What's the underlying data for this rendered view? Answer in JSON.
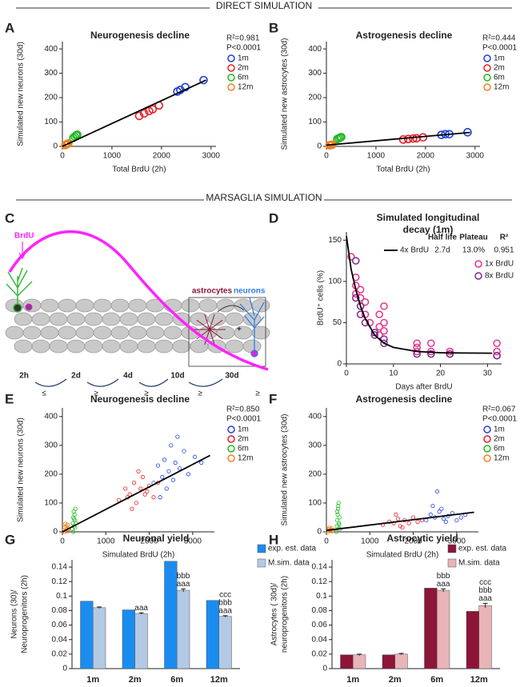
{
  "sections": [
    "DIRECT SIMULATION",
    "MARSAGLIA SIMULATION"
  ],
  "diagram": {
    "panel": "C",
    "brdu": "BrdU",
    "cell_labels": [
      "astrocytes",
      "neurons"
    ],
    "timepoints": [
      "2h",
      "2d",
      "4d",
      "10d",
      "30d"
    ],
    "comparisons": [
      "≤",
      "≥",
      "≥",
      "≥",
      "≥"
    ],
    "plus": "+"
  },
  "chart_data": [
    {
      "panel": "A",
      "type": "scatter",
      "title": "Neurogenesis decline",
      "xlabel": "Total BrdU (2h)",
      "ylabel": "Simulated new neurons (30d)",
      "annotations": [
        "R²=0.981",
        "P<0.0001"
      ],
      "xlim": [
        0,
        3100
      ],
      "xticks": [
        0,
        1000,
        2000,
        3000
      ],
      "ylim": [
        0,
        430
      ],
      "yticks": [
        0,
        100,
        200,
        300,
        400
      ],
      "series": [
        {
          "name": "1m",
          "color": "#1f3fd8",
          "x": [
            2320,
            2380,
            2480,
            2850
          ],
          "y": [
            225,
            232,
            243,
            272
          ]
        },
        {
          "name": "2m",
          "color": "#e8202a",
          "x": [
            1550,
            1650,
            1750,
            1820,
            1950
          ],
          "y": [
            125,
            135,
            145,
            152,
            168
          ]
        },
        {
          "name": "6m",
          "color": "#22b822",
          "x": [
            220,
            250,
            280,
            300
          ],
          "y": [
            35,
            40,
            45,
            48
          ]
        },
        {
          "name": "12m",
          "color": "#f08020",
          "x": [
            60,
            80,
            100,
            120
          ],
          "y": [
            5,
            8,
            10,
            12
          ]
        }
      ],
      "fit": {
        "color": "#000000",
        "x": [
          0,
          2900
        ],
        "y": [
          0,
          272
        ]
      }
    },
    {
      "panel": "B",
      "type": "scatter",
      "title": "Astrogenesis decline",
      "xlabel": "Total BrdU (2h)",
      "ylabel": "Simulated new astrocytes (30d)",
      "annotations": [
        "R²=0.444",
        "P<0.0001"
      ],
      "xlim": [
        0,
        3100
      ],
      "xticks": [
        0,
        1000,
        2000,
        3000
      ],
      "ylim": [
        0,
        430
      ],
      "yticks": [
        0,
        100,
        200,
        300,
        400
      ],
      "series": [
        {
          "name": "1m",
          "color": "#1f3fd8",
          "x": [
            2320,
            2400,
            2480,
            2850
          ],
          "y": [
            47,
            50,
            50,
            58
          ]
        },
        {
          "name": "2m",
          "color": "#e8202a",
          "x": [
            1550,
            1650,
            1750,
            1820,
            1950
          ],
          "y": [
            28,
            30,
            32,
            33,
            37
          ]
        },
        {
          "name": "6m",
          "color": "#22b822",
          "x": [
            220,
            250,
            280,
            300
          ],
          "y": [
            30,
            33,
            36,
            38
          ]
        },
        {
          "name": "12m",
          "color": "#f08020",
          "x": [
            60,
            80,
            100,
            120
          ],
          "y": [
            4,
            5,
            6,
            7
          ]
        }
      ],
      "fit": {
        "color": "#000000",
        "x": [
          0,
          2900
        ],
        "y": [
          5,
          57
        ]
      }
    },
    {
      "panel": "D",
      "type": "scatter",
      "title": [
        "Simulated longitudinal",
        "decay (1m)"
      ],
      "xlabel": "Days after BrdU",
      "ylabel": "BrdU⁺ cells (%)",
      "xlim": [
        0,
        33
      ],
      "xticks": [
        0,
        10,
        20,
        30
      ],
      "ylim": [
        0,
        160
      ],
      "yticks": [
        0,
        50,
        100,
        150
      ],
      "fit_headers": [
        "Half life",
        "Plateau",
        "R²"
      ],
      "fit": {
        "name": "4x BrdU",
        "half_life": "2.7d",
        "plateau": "13.0%",
        "r2": "0.951",
        "color": "#000000",
        "x": [
          0,
          1,
          2,
          3,
          4,
          6,
          8,
          10,
          15,
          20,
          25,
          31
        ],
        "y": [
          155,
          115,
          90,
          70,
          55,
          35,
          25,
          20,
          15,
          13.5,
          13.2,
          13
        ]
      },
      "series": [
        {
          "name": "1x BrdU",
          "color": "#e8328a",
          "x": [
            1,
            2,
            2,
            2,
            3,
            3,
            3,
            4,
            4,
            5,
            7,
            7,
            7,
            8,
            8,
            8,
            15,
            15,
            15,
            18,
            18,
            22,
            22,
            32,
            32,
            32
          ],
          "y": [
            130,
            105,
            95,
            85,
            90,
            80,
            70,
            75,
            60,
            50,
            60,
            45,
            35,
            70,
            50,
            40,
            25,
            20,
            15,
            25,
            15,
            15,
            12,
            25,
            15,
            10
          ]
        },
        {
          "name": "8x BrdU",
          "color": "#7b2a8c",
          "x": [
            2,
            2,
            3,
            3,
            4,
            6,
            6,
            8,
            8,
            15,
            18,
            22,
            32
          ],
          "y": [
            125,
            80,
            70,
            60,
            50,
            35,
            38,
            25,
            30,
            12,
            12,
            12,
            10
          ]
        }
      ]
    },
    {
      "panel": "E",
      "type": "scatter",
      "title": "Neurogenesis decline",
      "xlabel": "Simulated BrdU (2h)",
      "ylabel": "Simulated new neurons (30d)",
      "annotations": [
        "R²=0.850",
        "P<0.0001"
      ],
      "xlim": [
        0,
        3500
      ],
      "xticks": [
        0,
        1000,
        2000,
        3000
      ],
      "ylim": [
        0,
        430
      ],
      "yticks": [
        0,
        100,
        200,
        300,
        400
      ],
      "series": [
        {
          "name": "1m",
          "color": "#2040e0",
          "x": [
            2100,
            2200,
            2300,
            2350,
            2450,
            2500,
            2550,
            2600,
            2700,
            2800,
            2900,
            3050,
            2400,
            2650,
            2250,
            3200
          ],
          "y": [
            170,
            230,
            190,
            250,
            210,
            300,
            180,
            240,
            220,
            280,
            200,
            260,
            150,
            330,
            120,
            240
          ]
        },
        {
          "name": "2m",
          "color": "#ee1c25",
          "x": [
            1300,
            1450,
            1550,
            1650,
            1700,
            1800,
            1850,
            1900,
            2000,
            2100,
            2200,
            1600,
            1750,
            1950,
            1500
          ],
          "y": [
            110,
            150,
            130,
            170,
            100,
            150,
            190,
            130,
            160,
            120,
            170,
            80,
            210,
            140,
            120
          ]
        },
        {
          "name": "6m",
          "color": "#22bb22",
          "x": [
            230,
            240,
            250,
            260,
            270,
            280,
            290,
            300,
            310,
            250,
            270,
            290
          ],
          "y": [
            10,
            30,
            50,
            70,
            20,
            60,
            40,
            80,
            30,
            0,
            45,
            15
          ]
        },
        {
          "name": "12m",
          "color": "#f08020",
          "x": [
            30,
            50,
            60,
            80,
            100,
            120,
            140,
            150,
            70,
            110
          ],
          "y": [
            5,
            15,
            0,
            20,
            10,
            25,
            8,
            12,
            28,
            2
          ]
        }
      ],
      "fit": {
        "color": "#000000",
        "x": [
          0,
          3400
        ],
        "y": [
          0,
          265
        ]
      }
    },
    {
      "panel": "F",
      "type": "scatter",
      "title": "Astrogenesis decline",
      "xlabel": "Simulated BrdU (2h)",
      "ylabel": "Simulated new astrocytes (30d)",
      "annotations": [
        "R²=0.067",
        "P<0.0001"
      ],
      "xlim": [
        0,
        3500
      ],
      "xticks": [
        0,
        1000,
        2000,
        3000
      ],
      "ylim": [
        0,
        430
      ],
      "yticks": [
        0,
        100,
        200,
        300,
        400
      ],
      "series": [
        {
          "name": "1m",
          "color": "#2040e0",
          "x": [
            2300,
            2400,
            2500,
            2600,
            2700,
            2800,
            2900,
            3000,
            3100,
            2450,
            2750,
            2550,
            3200,
            2650
          ],
          "y": [
            40,
            60,
            50,
            70,
            45,
            55,
            65,
            40,
            50,
            90,
            35,
            140,
            60,
            80
          ]
        },
        {
          "name": "2m",
          "color": "#ee1c25",
          "x": [
            1300,
            1450,
            1550,
            1650,
            1700,
            1800,
            1900,
            2000,
            2100,
            2200,
            1600,
            1750
          ],
          "y": [
            25,
            35,
            30,
            45,
            20,
            40,
            30,
            50,
            35,
            40,
            60,
            15
          ]
        },
        {
          "name": "6m",
          "color": "#22bb22",
          "x": [
            230,
            240,
            250,
            260,
            270,
            280,
            290,
            300,
            310,
            250,
            270,
            290
          ],
          "y": [
            0,
            20,
            40,
            60,
            80,
            100,
            30,
            50,
            10,
            70,
            90,
            25
          ]
        },
        {
          "name": "12m",
          "color": "#f08020",
          "x": [
            30,
            50,
            60,
            80,
            100,
            120,
            140,
            150,
            70,
            110
          ],
          "y": [
            0,
            5,
            10,
            3,
            8,
            12,
            2,
            6,
            15,
            4
          ]
        }
      ],
      "fit": {
        "color": "#000000",
        "x": [
          0,
          3400
        ],
        "y": [
          5,
          68
        ]
      }
    },
    {
      "panel": "G",
      "type": "bar",
      "title": "Neuronal yield",
      "ylabel": [
        "Neurons (30)/",
        "Neuroprogenitors (2h)"
      ],
      "categories": [
        "1m",
        "2m",
        "6m",
        "12m"
      ],
      "ylim": [
        0,
        0.15
      ],
      "yticks": [
        0,
        0.02,
        0.04,
        0.06,
        0.08,
        0.1,
        0.12,
        0.14
      ],
      "series": [
        {
          "name": "exp. est. data",
          "color": "#1a8cf0",
          "values": [
            0.093,
            0.081,
            0.148,
            0.094
          ]
        },
        {
          "name": "M.sim. data",
          "color": "#b4c9e4",
          "values": [
            0.084,
            0.076,
            0.108,
            0.072
          ],
          "errors": [
            0.001,
            0.001,
            0.002,
            0.001
          ]
        }
      ],
      "significance": [
        [],
        [
          "aaa"
        ],
        [
          "bbb",
          "aaa"
        ],
        [
          "ccc",
          "bbb",
          "aaa"
        ]
      ]
    },
    {
      "panel": "H",
      "type": "bar",
      "title": "Astrocytic yield",
      "ylabel": [
        "Astrocytes ( 30d)/",
        "neuroprogenitors (2h)"
      ],
      "categories": [
        "1m",
        "2m",
        "6m",
        "12m"
      ],
      "ylim": [
        0,
        0.15
      ],
      "yticks": [
        0,
        0.02,
        0.04,
        0.06,
        0.08,
        0.1,
        0.12,
        0.14
      ],
      "series": [
        {
          "name": "exp. est. data",
          "color": "#8c1538",
          "values": [
            0.019,
            0.019,
            0.111,
            0.079
          ]
        },
        {
          "name": "M.sim. data",
          "color": "#e8b4b8",
          "values": [
            0.019,
            0.02,
            0.108,
            0.087
          ],
          "errors": [
            0.001,
            0.001,
            0.002,
            0.003
          ]
        }
      ],
      "significance": [
        [],
        [],
        [
          "bbb",
          "aaa"
        ],
        [
          "ccc",
          "bbb",
          "aaa"
        ]
      ]
    }
  ]
}
